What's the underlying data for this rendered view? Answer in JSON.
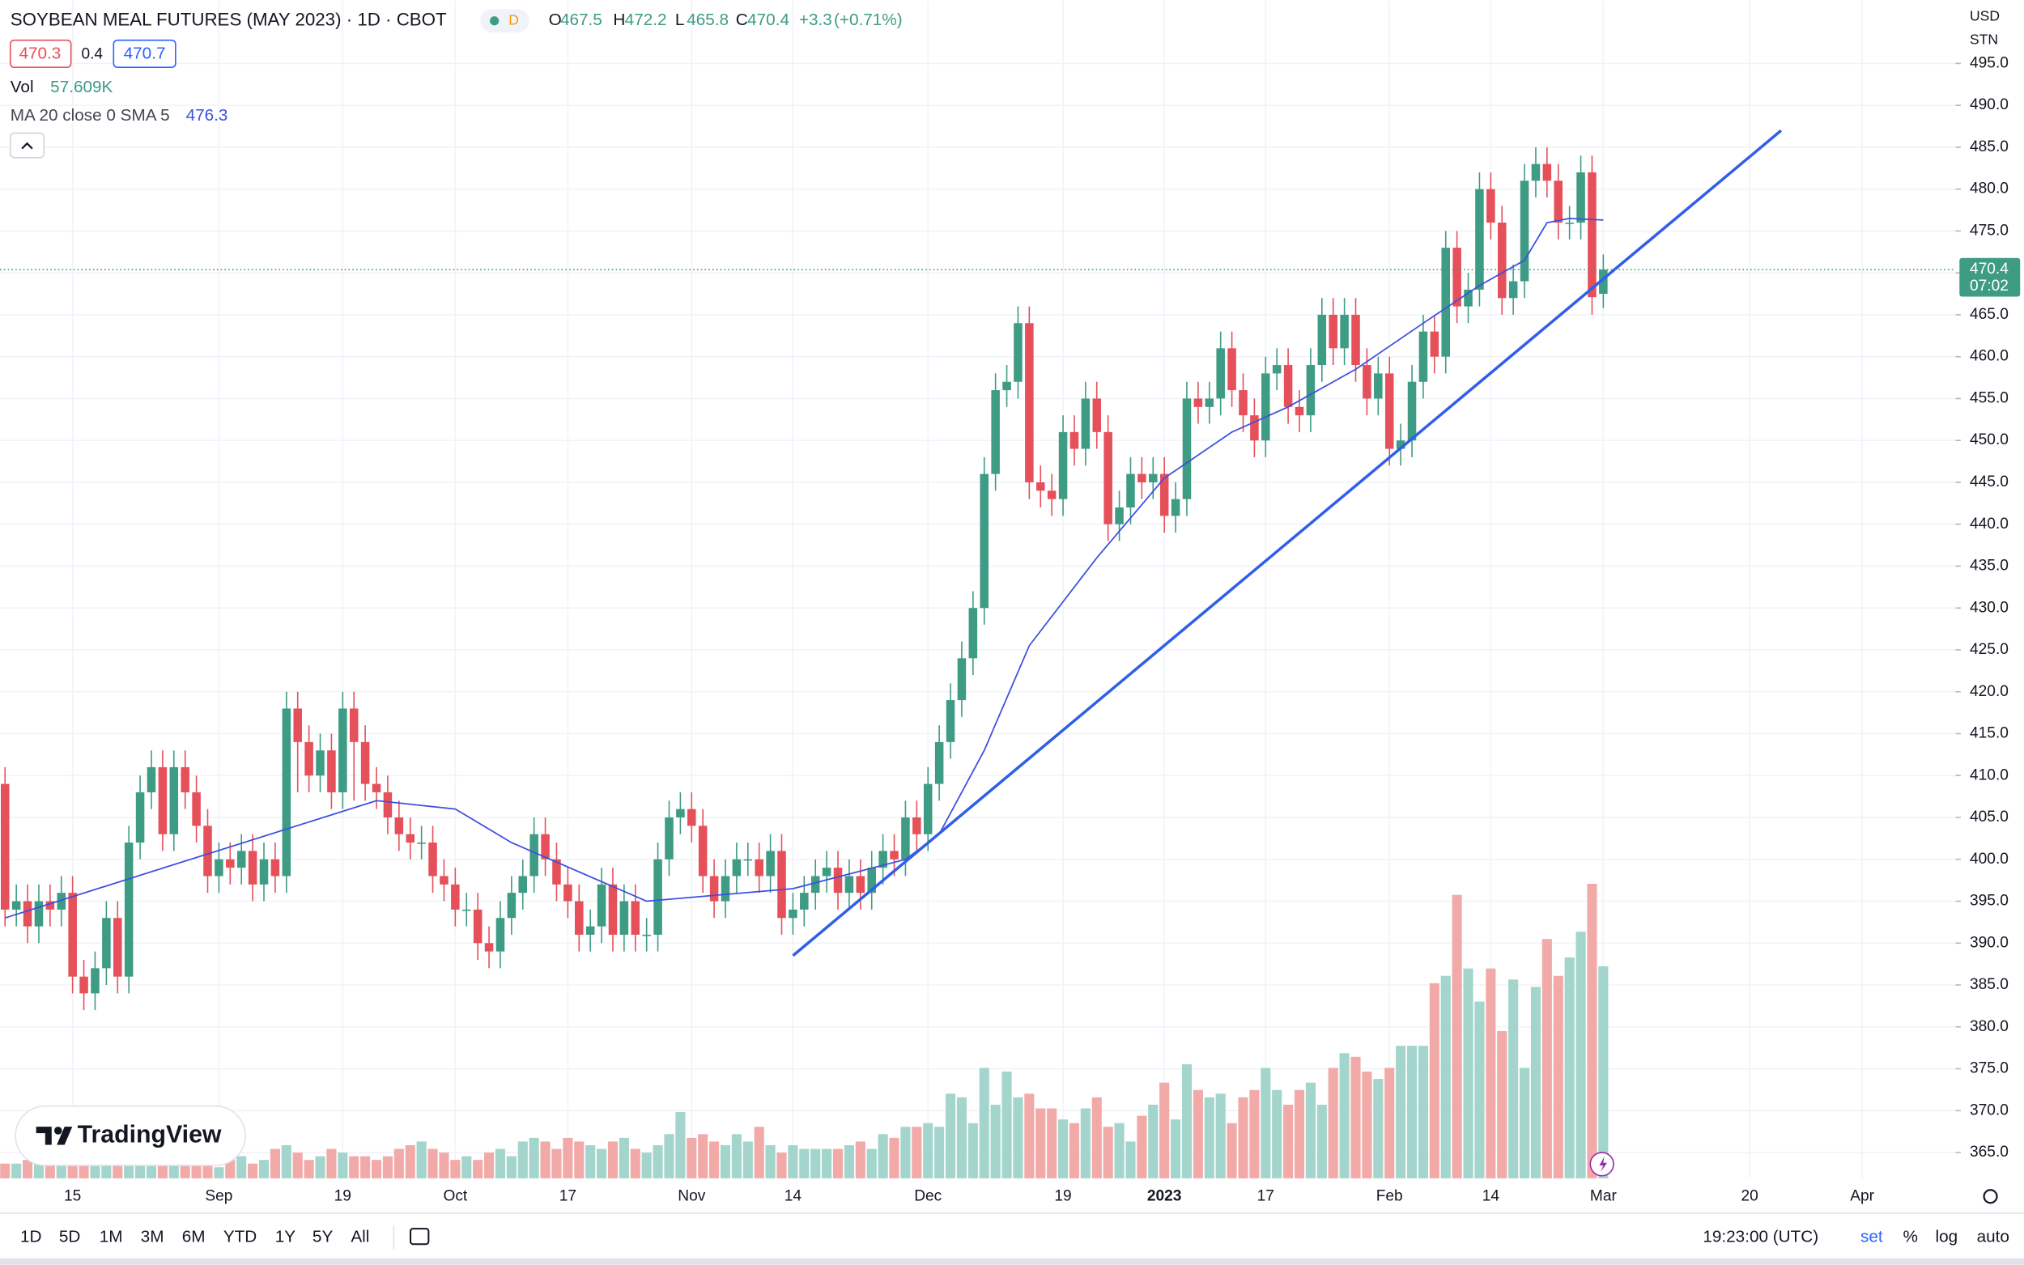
{
  "chart_data": {
    "type": "candlestick",
    "title": "SOYBEAN MEAL FUTURES (MAY 2023) · 1D · CBOT",
    "interval_badge": "D",
    "ohlc_header": [
      {
        "label": "O",
        "value": 467.5
      },
      {
        "label": "H",
        "value": 472.2
      },
      {
        "label": "L",
        "value": 465.8
      },
      {
        "label": "C",
        "value": 470.4
      }
    ],
    "change": "+3.3",
    "change_pct": "(+0.71%)",
    "bid": 470.3,
    "spread": 0.4,
    "ask": 470.7,
    "volume_label": "Vol",
    "volume_text": "57.609K",
    "ma_label": "MA 20 close 0 SMA 5",
    "ma_last": 476.3,
    "currency": "USD",
    "unit": "STN",
    "last_price": 470.4,
    "countdown": "07:02",
    "brand": "TradingView",
    "up_color": "#3e9b84",
    "down_color": "#e5505a",
    "volume_up_color": "#a3d5cc",
    "volume_down_color": "#f2aaa9",
    "grid": true,
    "xlim": [
      -0.45,
      173.3
    ],
    "ylim": [
      361.92,
      502.55
    ],
    "volume_lim": [
      0,
      320
    ],
    "xticks": [
      {
        "value": 6,
        "label": "15"
      },
      {
        "value": 19,
        "label": "Sep"
      },
      {
        "value": 30,
        "label": "19"
      },
      {
        "value": 40,
        "label": "Oct"
      },
      {
        "value": 50,
        "label": "17"
      },
      {
        "value": 61,
        "label": "Nov"
      },
      {
        "value": 70,
        "label": "14"
      },
      {
        "value": 82,
        "label": "Dec"
      },
      {
        "value": 94,
        "label": "19"
      },
      {
        "value": 103,
        "label": "2023"
      },
      {
        "value": 112,
        "label": "17"
      },
      {
        "value": 123,
        "label": "Feb"
      },
      {
        "value": 132,
        "label": "14"
      },
      {
        "value": 142,
        "label": "Mar"
      },
      {
        "value": 155,
        "label": "20"
      },
      {
        "value": 165,
        "label": "Apr"
      }
    ],
    "yticks": [
      {
        "value": 365,
        "label": "365.0"
      },
      {
        "value": 370,
        "label": "370.0"
      },
      {
        "value": 375,
        "label": "375.0"
      },
      {
        "value": 380,
        "label": "380.0"
      },
      {
        "value": 385,
        "label": "385.0"
      },
      {
        "value": 390,
        "label": "390.0"
      },
      {
        "value": 395,
        "label": "395.0"
      },
      {
        "value": 400,
        "label": "400.0"
      },
      {
        "value": 405,
        "label": "405.0"
      },
      {
        "value": 410,
        "label": "410.0"
      },
      {
        "value": 415,
        "label": "415.0"
      },
      {
        "value": 420,
        "label": "420.0"
      },
      {
        "value": 425,
        "label": "425.0"
      },
      {
        "value": 430,
        "label": "430.0"
      },
      {
        "value": 435,
        "label": "435.0"
      },
      {
        "value": 440,
        "label": "440.0"
      },
      {
        "value": 445,
        "label": "445.0"
      },
      {
        "value": 450,
        "label": "450.0"
      },
      {
        "value": 455,
        "label": "455.0"
      },
      {
        "value": 460,
        "label": "460.0"
      },
      {
        "value": 465,
        "label": "465.0"
      },
      {
        "value": 470,
        "label": "470.0"
      },
      {
        "value": 475,
        "label": "475.0"
      },
      {
        "value": 480,
        "label": "480.0"
      },
      {
        "value": 485,
        "label": "485.0"
      },
      {
        "value": 490,
        "label": "490.0"
      },
      {
        "value": 495,
        "label": "495.0"
      }
    ],
    "open": [
      409,
      394,
      395,
      392,
      395,
      394,
      396,
      386,
      384,
      387,
      393,
      386,
      402,
      408,
      411,
      403,
      411,
      408,
      404,
      398,
      400,
      399,
      401,
      397,
      400,
      398,
      418,
      414,
      410,
      413,
      408,
      418,
      414,
      409,
      408,
      405,
      403,
      402,
      402,
      398,
      397,
      394,
      394,
      390,
      389,
      393,
      396,
      398,
      403,
      400,
      397,
      395,
      391,
      392,
      397,
      391,
      395,
      391,
      391,
      400,
      405,
      406,
      404,
      398,
      395,
      398,
      400,
      400,
      398,
      401,
      393,
      394,
      396,
      398,
      399,
      396,
      398,
      396,
      399,
      401,
      400,
      405,
      403,
      409,
      414,
      419,
      424,
      430,
      446,
      456,
      457,
      464,
      445,
      444,
      443,
      451,
      449,
      455,
      451,
      440,
      442,
      446,
      445,
      446,
      441,
      443,
      455,
      454,
      455,
      461,
      456,
      453,
      450,
      458,
      459,
      454,
      453,
      459,
      465,
      461,
      465,
      459,
      455,
      458,
      449,
      450,
      457,
      463,
      460,
      473,
      466,
      468,
      480,
      476,
      467,
      469,
      481,
      483,
      481,
      476,
      476,
      482,
      467.5
    ],
    "high": [
      411,
      397,
      397,
      397,
      397,
      398,
      398,
      388,
      389,
      395,
      395,
      404,
      410,
      413,
      413,
      413,
      413,
      410,
      406,
      402,
      402,
      403,
      403,
      402,
      402,
      420,
      420,
      416,
      415,
      415,
      420,
      420,
      416,
      411,
      410,
      407,
      405,
      404,
      404,
      400,
      399,
      396,
      396,
      392,
      395,
      398,
      400,
      405,
      405,
      402,
      399,
      397,
      394,
      399,
      399,
      397,
      397,
      393,
      402,
      407,
      408,
      408,
      406,
      400,
      400,
      402,
      402,
      402,
      403,
      403,
      396,
      398,
      400,
      401,
      401,
      400,
      400,
      401,
      403,
      403,
      407,
      407,
      411,
      416,
      421,
      426,
      432,
      448,
      458,
      459,
      466,
      466,
      447,
      446,
      453,
      453,
      457,
      457,
      453,
      444,
      448,
      448,
      448,
      448,
      445,
      457,
      457,
      457,
      463,
      463,
      458,
      455,
      460,
      461,
      461,
      456,
      461,
      467,
      467,
      467,
      467,
      461,
      460,
      460,
      452,
      459,
      465,
      465,
      475,
      475,
      470,
      482,
      482,
      478,
      471,
      483,
      485,
      485,
      483,
      478,
      484,
      484,
      472.2
    ],
    "low": [
      392,
      392,
      390,
      390,
      392,
      392,
      384,
      382,
      382,
      385,
      384,
      384,
      400,
      406,
      401,
      401,
      406,
      402,
      396,
      396,
      397,
      397,
      395,
      395,
      396,
      396,
      408,
      408,
      408,
      406,
      406,
      407,
      407,
      406,
      403,
      401,
      400,
      400,
      396,
      395,
      392,
      392,
      388,
      387,
      387,
      391,
      394,
      396,
      398,
      395,
      393,
      389,
      389,
      390,
      389,
      389,
      389,
      389,
      389,
      398,
      403,
      402,
      396,
      393,
      393,
      396,
      398,
      396,
      396,
      391,
      391,
      392,
      394,
      396,
      394,
      394,
      394,
      394,
      397,
      398,
      398,
      401,
      401,
      407,
      412,
      417,
      422,
      428,
      444,
      454,
      455,
      443,
      442,
      441,
      441,
      447,
      447,
      449,
      438,
      438,
      440,
      443,
      443,
      439,
      439,
      441,
      452,
      452,
      453,
      454,
      451,
      448,
      448,
      456,
      452,
      451,
      451,
      457,
      459,
      459,
      457,
      453,
      453,
      447,
      447,
      448,
      455,
      458,
      458,
      464,
      464,
      466,
      474,
      465,
      465,
      467,
      479,
      479,
      474,
      474,
      474,
      465,
      465.8
    ],
    "close": [
      394,
      395,
      392,
      395,
      394,
      396,
      386,
      384,
      387,
      393,
      386,
      402,
      408,
      411,
      403,
      411,
      408,
      404,
      398,
      400,
      399,
      401,
      397,
      400,
      398,
      418,
      414,
      410,
      413,
      408,
      418,
      414,
      409,
      408,
      405,
      403,
      402,
      402,
      398,
      397,
      394,
      394,
      390,
      389,
      393,
      396,
      398,
      403,
      400,
      397,
      395,
      391,
      392,
      397,
      391,
      395,
      391,
      391,
      400,
      405,
      406,
      404,
      398,
      395,
      398,
      400,
      400,
      398,
      401,
      393,
      394,
      396,
      398,
      399,
      396,
      398,
      396,
      399,
      401,
      400,
      405,
      403,
      409,
      414,
      419,
      424,
      430,
      446,
      456,
      457,
      464,
      445,
      444,
      443,
      451,
      449,
      455,
      451,
      440,
      442,
      446,
      445,
      446,
      441,
      443,
      455,
      454,
      455,
      461,
      456,
      453,
      450,
      458,
      459,
      454,
      453,
      459,
      465,
      461,
      465,
      459,
      455,
      458,
      449,
      450,
      457,
      463,
      460,
      473,
      466,
      468,
      480,
      476,
      467,
      469,
      481,
      483,
      481,
      476,
      476,
      482,
      467.1,
      470.4
    ],
    "volume": [
      4,
      4,
      5,
      4,
      4,
      5,
      4,
      4,
      5,
      4,
      4,
      4,
      4,
      4,
      4,
      4,
      4,
      4,
      4,
      3,
      5,
      6,
      4,
      5,
      8,
      9,
      7,
      5,
      6,
      8,
      7,
      6,
      6,
      5,
      6,
      8,
      9,
      10,
      8,
      7,
      5,
      6,
      5,
      7,
      8,
      6,
      10,
      11,
      10,
      8,
      11,
      10,
      9,
      8,
      10,
      11,
      8,
      7,
      9,
      12,
      18,
      11,
      12,
      10,
      9,
      12,
      10,
      14,
      9,
      7,
      9,
      8,
      8,
      8,
      8,
      9,
      10,
      8,
      12,
      11,
      14,
      14,
      15,
      14,
      23,
      22,
      15,
      30,
      20,
      29,
      22,
      23,
      19,
      19,
      16,
      15,
      19,
      22,
      14,
      15,
      10,
      17,
      20,
      26,
      16,
      31,
      24,
      22,
      23,
      15,
      22,
      24,
      30,
      24,
      20,
      24,
      26,
      20,
      30,
      34,
      33,
      29,
      27,
      30,
      36,
      36,
      36,
      53,
      55,
      77,
      57,
      48,
      57,
      40,
      54,
      30,
      52,
      65,
      55,
      60,
      67,
      80,
      57.609
    ],
    "moving_average": {
      "color": "#3d4fe0",
      "x": [
        0,
        33,
        40,
        45,
        57,
        70,
        80,
        83,
        87,
        91,
        97,
        103,
        109,
        114,
        120,
        126,
        131,
        135,
        137,
        139,
        142
      ],
      "values": [
        393,
        407,
        406,
        402,
        395,
        396.5,
        400,
        403,
        413,
        425.5,
        436,
        445.5,
        451,
        454,
        458.5,
        464,
        468.5,
        471.5,
        476,
        476.5,
        476.3
      ]
    },
    "trendline": {
      "color": "#2f5fe8",
      "x": [
        70,
        157.8
      ],
      "values": [
        388.5,
        487
      ]
    },
    "toolbar": {
      "ranges": [
        "1D",
        "5D",
        "1M",
        "3M",
        "6M",
        "YTD",
        "1Y",
        "5Y",
        "All"
      ],
      "time": "19:23:00 (UTC)",
      "options": [
        "set",
        "%",
        "log",
        "auto"
      ]
    }
  }
}
